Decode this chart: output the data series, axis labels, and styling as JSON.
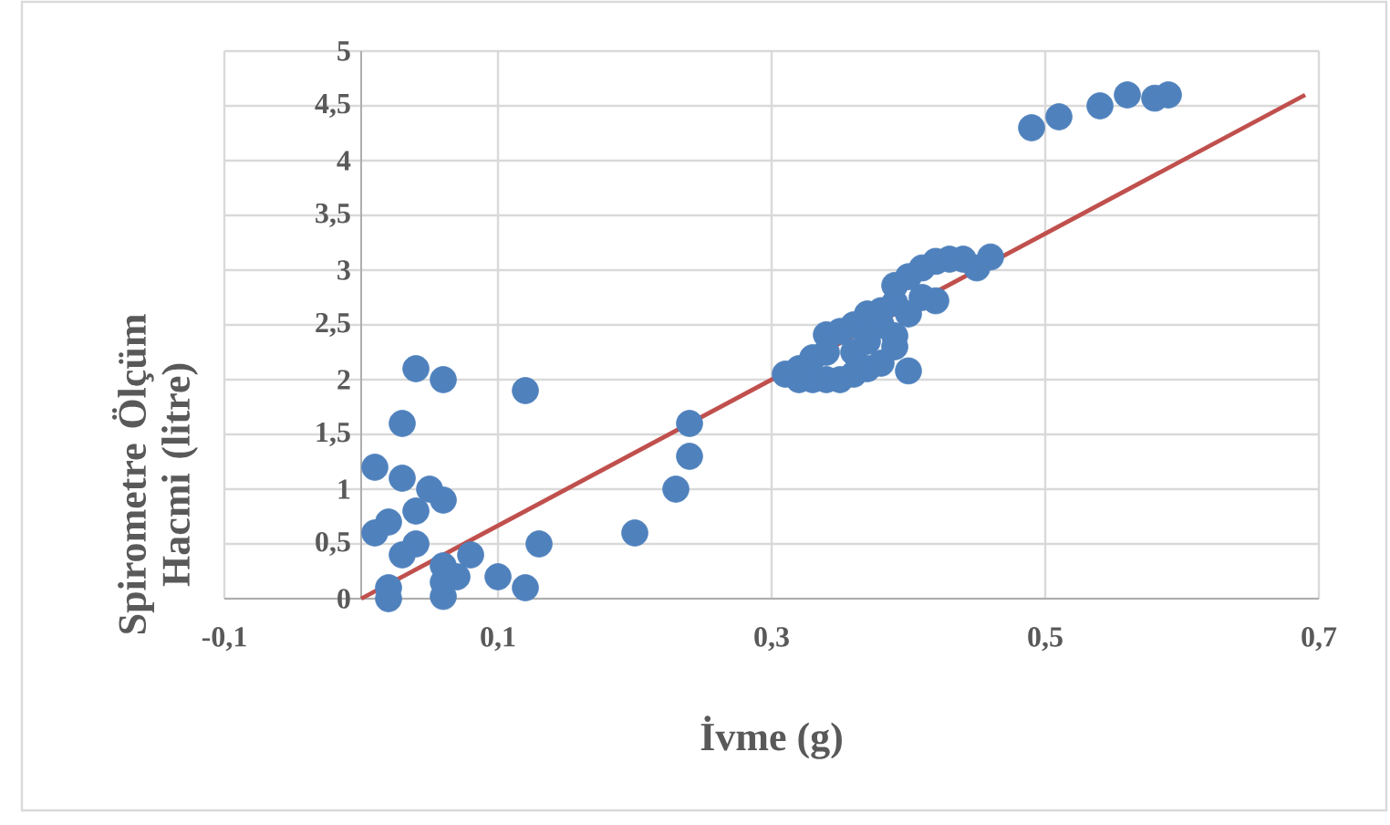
{
  "chart_data": {
    "type": "scatter",
    "xlabel": "İvme (g)",
    "ylabel": "Spirometre Ölçüm Hacmi (litre)",
    "xlim": [
      -0.1,
      0.7
    ],
    "ylim": [
      0,
      5
    ],
    "xticks": [
      {
        "value": -0.1,
        "label": "-0,1"
      },
      {
        "value": 0.1,
        "label": "0,1"
      },
      {
        "value": 0.3,
        "label": "0,3"
      },
      {
        "value": 0.5,
        "label": "0,5"
      },
      {
        "value": 0.7,
        "label": "0,7"
      }
    ],
    "yticks": [
      0,
      {
        "value": 0.5,
        "label": "0,5"
      },
      1,
      {
        "value": 1.5,
        "label": "1,5"
      },
      2,
      {
        "value": 2.5,
        "label": "2,5"
      },
      3,
      {
        "value": 3.5,
        "label": "3,5"
      },
      4,
      {
        "value": 4.5,
        "label": "4,5"
      },
      5
    ],
    "grid": true,
    "series": [
      {
        "color": "#4f81bd",
        "marker": "circle",
        "x": [
          0.36,
          0.37,
          0.38,
          0.39,
          0.04,
          0.06,
          0.12,
          0.03,
          0.01,
          0.03,
          0.05,
          0.06,
          0.04,
          0.02,
          0.01,
          0.04,
          0.03,
          0.08,
          0.13,
          0.06,
          0.07,
          0.06,
          0.06,
          0.1,
          0.12,
          0.02,
          0.02,
          0.2,
          0.23,
          0.24,
          0.24,
          0.49,
          0.51,
          0.54,
          0.56,
          0.58,
          0.59,
          0.46,
          0.45,
          0.44,
          0.43,
          0.42,
          0.41,
          0.4,
          0.39,
          0.42,
          0.4,
          0.31,
          0.32,
          0.33,
          0.34,
          0.35,
          0.37,
          0.34,
          0.35,
          0.36,
          0.37,
          0.38,
          0.33,
          0.34,
          0.36,
          0.38,
          0.39,
          0.41,
          0.32,
          0.39,
          0.4
        ],
        "values": [
          2.25,
          2.35,
          2.5,
          2.7,
          2.1,
          2.0,
          1.9,
          1.6,
          1.2,
          1.1,
          1.0,
          0.9,
          0.8,
          0.7,
          0.6,
          0.5,
          0.4,
          0.4,
          0.5,
          0.3,
          0.2,
          0.15,
          0.02,
          0.2,
          0.1,
          0.1,
          0.0,
          0.6,
          1.0,
          1.6,
          1.3,
          4.3,
          4.4,
          4.5,
          4.6,
          4.57,
          4.6,
          3.12,
          3.02,
          3.1,
          3.1,
          3.08,
          3.02,
          2.94,
          2.86,
          2.72,
          2.08,
          2.05,
          2.0,
          2.0,
          2.0,
          2.0,
          2.1,
          2.41,
          2.44,
          2.5,
          2.6,
          2.63,
          2.2,
          2.25,
          2.05,
          2.15,
          2.3,
          2.75,
          2.1,
          2.4,
          2.6
        ]
      },
      {
        "type": "line",
        "color": "#c0504d",
        "line_style": "solid",
        "x": [
          0,
          0.69
        ],
        "values": [
          0,
          4.6
        ]
      }
    ]
  }
}
